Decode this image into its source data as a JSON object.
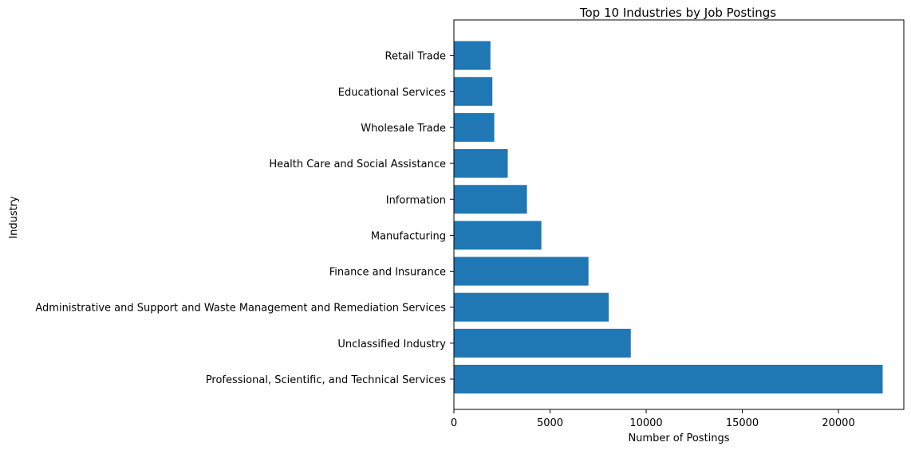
{
  "chart_data": {
    "type": "bar",
    "orientation": "horizontal",
    "title": "Top 10 Industries by Job Postings",
    "xlabel": "Number of Postings",
    "ylabel": "Industry",
    "categories": [
      "Professional, Scientific, and Technical Services",
      "Unclassified Industry",
      "Administrative and Support and Waste Management and Remediation Services",
      "Finance and Insurance",
      "Manufacturing",
      "Information",
      "Health Care and Social Assistance",
      "Wholesale Trade",
      "Educational Services",
      "Retail Trade"
    ],
    "values": [
      22300,
      9200,
      8050,
      7000,
      4550,
      3800,
      2800,
      2100,
      2000,
      1900
    ],
    "xlim": [
      0,
      23400
    ],
    "xticks": [
      0,
      5000,
      10000,
      15000,
      20000
    ],
    "xtick_labels": [
      "0",
      "5000",
      "10000",
      "15000",
      "20000"
    ],
    "grid": false,
    "legend": "none",
    "bar_color": "#1f77b4"
  }
}
